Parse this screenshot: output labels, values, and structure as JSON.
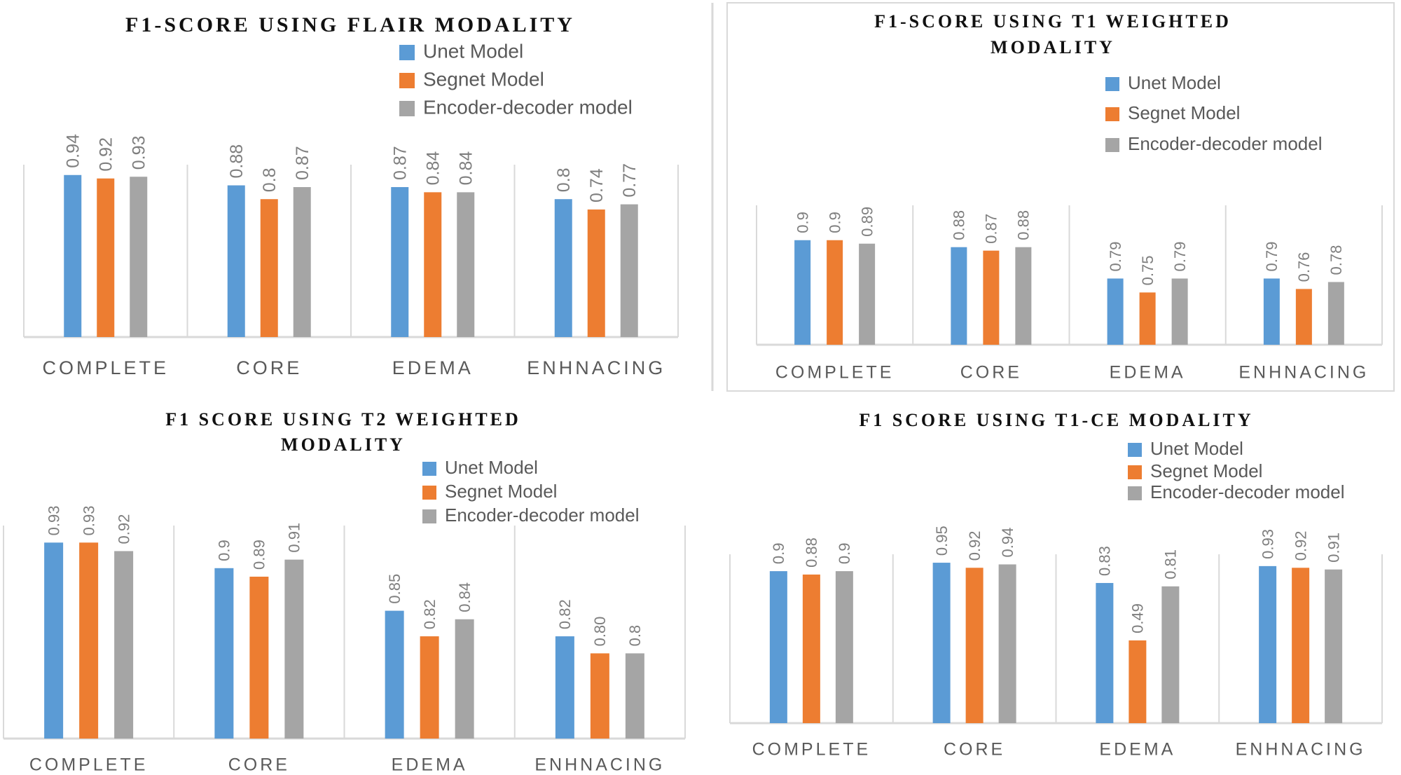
{
  "series_colors": {
    "Unet Model": "#5b9bd5",
    "Segnet Model": "#ed7d31",
    "Encoder-decoder model": "#a5a5a5"
  },
  "axis_color": "#d9d9d9",
  "chart_data": [
    {
      "id": "flair",
      "type": "bar",
      "title": [
        "F1-SCORE USING FLAIR MODALITY"
      ],
      "xlabel": "",
      "ylabel": "",
      "categories": [
        "COMPLETE",
        "CORE",
        "EDEMA",
        "ENHNACING"
      ],
      "series": [
        {
          "name": "Unet Model",
          "values": [
            0.94,
            0.88,
            0.87,
            0.8
          ],
          "labels": [
            "0.94",
            "0.88",
            "0.87",
            "0.8"
          ]
        },
        {
          "name": "Segnet Model",
          "values": [
            0.92,
            0.8,
            0.84,
            0.74
          ],
          "labels": [
            "0.92",
            "0.8",
            "0.84",
            "0.74"
          ]
        },
        {
          "name": "Encoder-decoder model",
          "values": [
            0.93,
            0.87,
            0.84,
            0.77
          ],
          "labels": [
            "0.93",
            "0.87",
            "0.84",
            "0.77"
          ]
        }
      ],
      "ylim": [
        0,
        1.0
      ],
      "grid": false,
      "legend": "top-right"
    },
    {
      "id": "t1",
      "type": "bar",
      "title": [
        "F1-SCORE USING T1 WEIGHTED",
        "MODALITY"
      ],
      "xlabel": "",
      "ylabel": "",
      "categories": [
        "COMPLETE",
        "CORE",
        "EDEMA",
        "ENHNACING"
      ],
      "series": [
        {
          "name": "Unet Model",
          "values": [
            0.9,
            0.88,
            0.79,
            0.79
          ],
          "labels": [
            "0.9",
            "0.88",
            "0.79",
            "0.79"
          ]
        },
        {
          "name": "Segnet Model",
          "values": [
            0.9,
            0.87,
            0.75,
            0.76
          ],
          "labels": [
            "0.9",
            "0.87",
            "0.75",
            "0.76"
          ]
        },
        {
          "name": "Encoder-decoder model",
          "values": [
            0.89,
            0.88,
            0.79,
            0.78
          ],
          "labels": [
            "0.89",
            "0.88",
            "0.79",
            "0.78"
          ]
        }
      ],
      "ylim": [
        0.6,
        1.0
      ],
      "grid": false,
      "legend": "top-right"
    },
    {
      "id": "t2",
      "type": "bar",
      "title": [
        "F1 SCORE USING T2 WEIGHTED",
        "MODALITY"
      ],
      "xlabel": "",
      "ylabel": "",
      "categories": [
        "COMPLETE",
        "CORE",
        "EDEMA",
        "ENHNACING"
      ],
      "series": [
        {
          "name": "Unet Model",
          "values": [
            0.93,
            0.9,
            0.85,
            0.82
          ],
          "labels": [
            "0.93",
            "0.9",
            "0.85",
            "0.82"
          ]
        },
        {
          "name": "Segnet Model",
          "values": [
            0.93,
            0.89,
            0.82,
            0.8
          ],
          "labels": [
            "0.93",
            "0.89",
            "0.82",
            "0.80"
          ]
        },
        {
          "name": "Encoder-decoder model",
          "values": [
            0.92,
            0.91,
            0.84,
            0.8
          ],
          "labels": [
            "0.92",
            "0.91",
            "0.84",
            "0.8"
          ]
        }
      ],
      "ylim": [
        0.7,
        0.95
      ],
      "grid": false,
      "legend": "top-right"
    },
    {
      "id": "t1ce",
      "type": "bar",
      "title": [
        "F1 SCORE USING T1-CE MODALITY"
      ],
      "xlabel": "",
      "ylabel": "",
      "categories": [
        "COMPLETE",
        "CORE",
        "EDEMA",
        "ENHNACING"
      ],
      "series": [
        {
          "name": "Unet Model",
          "values": [
            0.9,
            0.95,
            0.83,
            0.93
          ],
          "labels": [
            "0.9",
            "0.95",
            "0.83",
            "0.93"
          ]
        },
        {
          "name": "Segnet Model",
          "values": [
            0.88,
            0.92,
            0.49,
            0.92
          ],
          "labels": [
            "0.88",
            "0.92",
            "0.49",
            "0.92"
          ]
        },
        {
          "name": "Encoder-decoder model",
          "values": [
            0.9,
            0.94,
            0.81,
            0.91
          ],
          "labels": [
            "0.9",
            "0.94",
            "0.81",
            "0.91"
          ]
        }
      ],
      "ylim": [
        0,
        1.0
      ],
      "grid": false,
      "legend": "top-right"
    }
  ]
}
